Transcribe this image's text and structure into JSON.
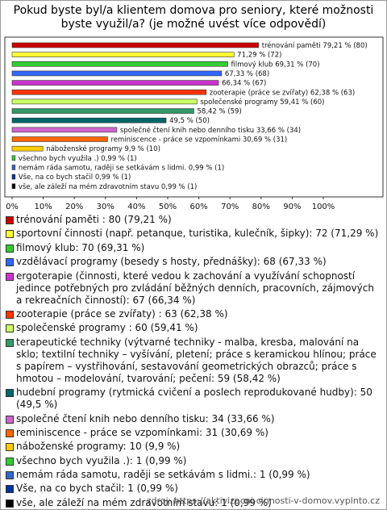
{
  "chart_data": {
    "type": "bar",
    "orientation": "horizontal",
    "title": "Pokud byste byl/a klientem domova pro seniory, které možnosti byste využil/a? (je možné uvést více odpovědí)",
    "categories": [
      "trénování paměti : 80 (79,21 %)",
      "sportovní činnosti (např. petanque, turistika, kulečník, šipky): 72 (71,29 %)",
      "filmový klub: 70 (69,31 %)",
      "vzdělávací programy (besedy s hosty, přednášky): 68 (67,33 %)",
      "ergoterapie (činnosti, které vedou k zachování a využívání schopností jedince potřebných pro zvládání běžných denních, pracovních, zájmových a rekreačních činností): 67 (66,34 %)",
      "zooterapie (práce se zvířaty) : 63 (62,38 %)",
      "společenské programy : 60 (59,41 %)",
      "terapeutické techniky (výtvarné techniky - malba, kresba, malování na sklo; textilní techniky – vyšívání, pletení; práce s keramickou hlínou; práce s papírem – vystřihování, sestavování geometrických obrazců; práce s hmotou – modelování, tvarování; pečení: 59 (58,42 %)",
      "hudební programy (rytmická cvičení a poslech reprodukované hudby): 50 (49,5 %)",
      "společné čtení knih nebo denního tisku: 34 (33,66 %)",
      "reminiscence - práce se vzpomínkami: 31 (30,69 %)",
      "náboženské programy: 10 (9,9 %)",
      "všechno bych využila .): 1 (0,99 %)",
      "nemám ráda samotu, raději se setkávám s lidmi.: 1 (0,99 %)",
      "Vše, na co bych stačil: 1 (0,99 %)",
      "vše, ale záleží na mém zdravotním stavu: 1 (0,99 %)"
    ],
    "values": [
      79.21,
      71.29,
      69.31,
      67.33,
      66.34,
      62.38,
      59.41,
      58.42,
      49.5,
      33.66,
      30.69,
      9.9,
      0.99,
      0.99,
      0.99,
      0.99
    ],
    "value_labels": [
      "trénování paměti 79,21 % (80)",
      "71,29 % (72)",
      "filmový klub 69,31 % (70)",
      "67,33 % (68)",
      "66,34 % (67)",
      "zooterapie (práce se zvířaty) 62,38 % (63)",
      "společenské programy 59,41 % (60)",
      "58,42 % (59)",
      "49,5 % (50)",
      "společné čtení knih nebo denního tisku 33,66 % (34)",
      "reminiscence - práce se vzpomínkami 30,69 % (31)",
      "náboženské programy 9,9 % (10)",
      "všechno bych využila .) 0,99 % (1)",
      "nemám ráda samotu, raději se setkávám s lidmi. 0,99 % (1)",
      "Vše, na co bych stačil 0,99 % (1)",
      "vše, ale záleží na mém zdravotním stavu 0,99 % (1)"
    ],
    "colors": [
      "#cc0000",
      "#ffff33",
      "#33cc33",
      "#3366ff",
      "#cc33cc",
      "#ff3300",
      "#ccff66",
      "#339966",
      "#006666",
      "#cc66cc",
      "#ff6600",
      "#ffcc00",
      "#33cc33",
      "#3366cc",
      "#003399",
      "#000000"
    ],
    "xlim": [
      0,
      100
    ],
    "xticks": [
      {
        "value": 0,
        "label": "0%"
      },
      {
        "value": 10,
        "label": "10%"
      },
      {
        "value": 20,
        "label": "20%"
      },
      {
        "value": 30,
        "label": "30%"
      },
      {
        "value": 40,
        "label": "40%"
      },
      {
        "value": 50,
        "label": "50%"
      },
      {
        "value": 60,
        "label": "60%"
      },
      {
        "value": 70,
        "label": "70%"
      },
      {
        "value": 80,
        "label": "80%"
      },
      {
        "value": 90,
        "label": "90%"
      },
      {
        "value": 100,
        "label": "100%"
      }
    ],
    "source": "zdroj: https://aktivizacni-cinnosti-v-domov.vyplnto.cz"
  }
}
